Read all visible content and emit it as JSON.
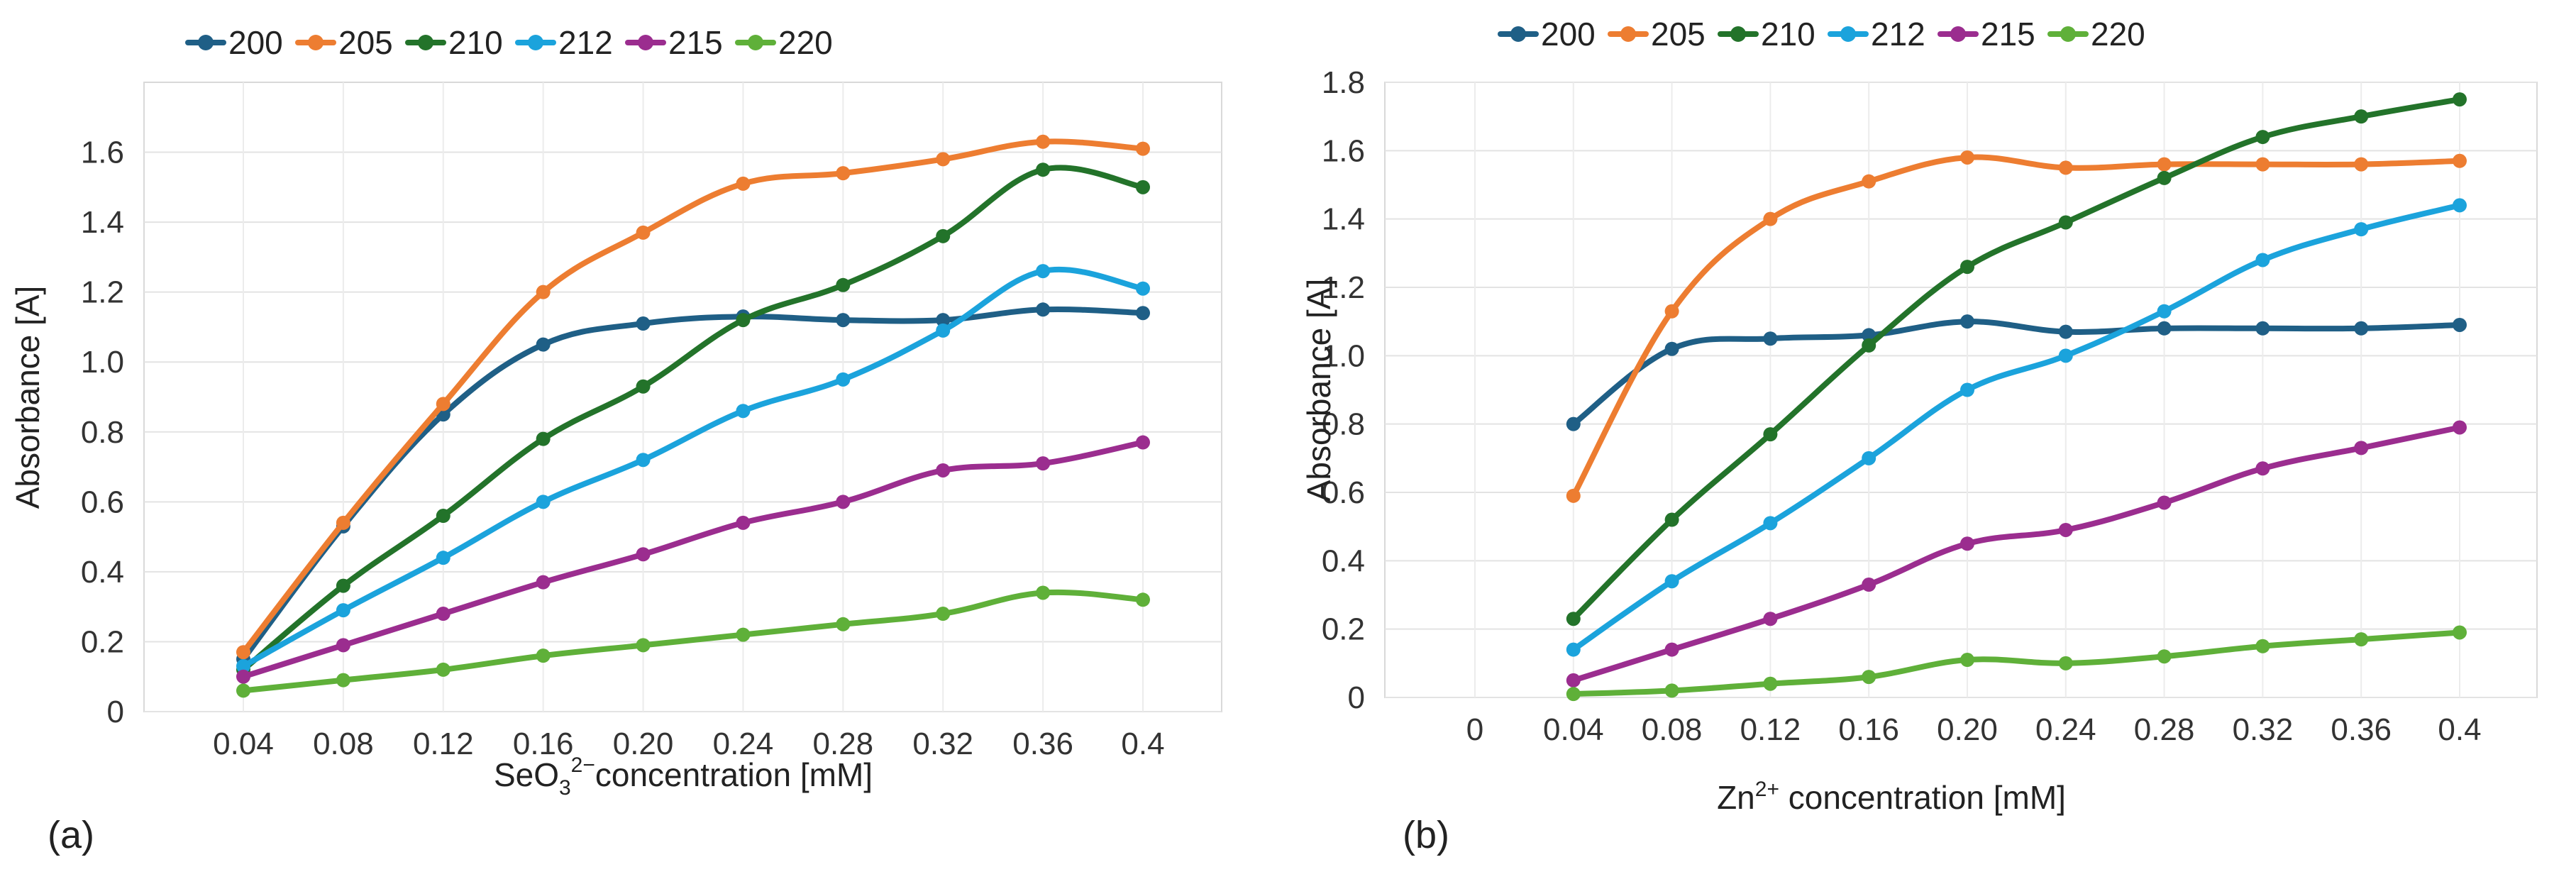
{
  "chart_data": [
    {
      "type": "line",
      "panel_label": "(a)",
      "xlabel": "SeO₃²⁻concentration [mM]",
      "xlabel_parts": {
        "base": "SeO",
        "sub": "3",
        "sup": "2−",
        "rest": "concentration [mM]"
      },
      "ylabel": "Absorbance [A]",
      "ylim": [
        0,
        1.8
      ],
      "yticks": [
        "0",
        "0.2",
        "0.4",
        "0.6",
        "0.8",
        "1.0",
        "1.2",
        "1.4",
        "1.6"
      ],
      "ytick_values": [
        0,
        0.2,
        0.4,
        0.6,
        0.8,
        1.0,
        1.2,
        1.4,
        1.6
      ],
      "categories": [
        "0.04",
        "0.08",
        "0.12",
        "0.16",
        "0.20",
        "0.24",
        "0.28",
        "0.32",
        "0.36",
        "0.4"
      ],
      "grid": true,
      "legend_position": "top",
      "series": [
        {
          "name": "200",
          "color": "#1f5f86",
          "values": [
            0.15,
            0.53,
            0.85,
            1.05,
            1.11,
            1.13,
            1.12,
            1.12,
            1.15,
            1.14
          ]
        },
        {
          "name": "205",
          "color": "#ed7d31",
          "values": [
            0.17,
            0.54,
            0.88,
            1.2,
            1.37,
            1.51,
            1.54,
            1.58,
            1.63,
            1.61
          ]
        },
        {
          "name": "210",
          "color": "#23732a",
          "values": [
            0.12,
            0.36,
            0.56,
            0.78,
            0.93,
            1.12,
            1.22,
            1.36,
            1.55,
            1.5
          ]
        },
        {
          "name": "212",
          "color": "#1ba3dc",
          "values": [
            0.13,
            0.29,
            0.44,
            0.6,
            0.72,
            0.86,
            0.95,
            1.09,
            1.26,
            1.21
          ]
        },
        {
          "name": "215",
          "color": "#9b2d8f",
          "values": [
            0.1,
            0.19,
            0.28,
            0.37,
            0.45,
            0.54,
            0.6,
            0.69,
            0.71,
            0.77
          ]
        },
        {
          "name": "220",
          "color": "#5fb039",
          "values": [
            0.06,
            0.09,
            0.12,
            0.16,
            0.19,
            0.22,
            0.25,
            0.28,
            0.34,
            0.32
          ]
        }
      ]
    },
    {
      "type": "line",
      "panel_label": "(b)",
      "xlabel": "Zn²⁺ concentration [mM]",
      "xlabel_parts": {
        "base": "Zn",
        "sup": "2+",
        "rest": " concentration [mM]"
      },
      "ylabel": "Absorbance [A]",
      "ylim": [
        0,
        1.8
      ],
      "yticks": [
        "0",
        "0.2",
        "0.4",
        "0.6",
        "0.8",
        "1.0",
        "1.2",
        "1.4",
        "1.6",
        "1.8"
      ],
      "ytick_values": [
        0,
        0.2,
        0.4,
        0.6,
        0.8,
        1.0,
        1.2,
        1.4,
        1.6,
        1.8
      ],
      "categories": [
        "0",
        "0.04",
        "0.08",
        "0.12",
        "0.16",
        "0.20",
        "0.24",
        "0.28",
        "0.32",
        "0.36",
        "0.4"
      ],
      "grid": true,
      "legend_position": "top",
      "series": [
        {
          "name": "200",
          "color": "#1f5f86",
          "values": [
            null,
            0.8,
            1.02,
            1.05,
            1.06,
            1.1,
            1.07,
            1.08,
            1.08,
            1.08,
            1.09
          ]
        },
        {
          "name": "205",
          "color": "#ed7d31",
          "values": [
            null,
            0.59,
            1.13,
            1.4,
            1.51,
            1.58,
            1.55,
            1.56,
            1.56,
            1.56,
            1.57
          ]
        },
        {
          "name": "210",
          "color": "#23732a",
          "values": [
            null,
            0.23,
            0.52,
            0.77,
            1.03,
            1.26,
            1.39,
            1.52,
            1.64,
            1.7,
            1.75
          ]
        },
        {
          "name": "212",
          "color": "#1ba3dc",
          "values": [
            null,
            0.14,
            0.34,
            0.51,
            0.7,
            0.9,
            1.0,
            1.13,
            1.28,
            1.37,
            1.44
          ]
        },
        {
          "name": "215",
          "color": "#9b2d8f",
          "values": [
            null,
            0.05,
            0.14,
            0.23,
            0.33,
            0.45,
            0.49,
            0.57,
            0.67,
            0.73,
            0.79
          ]
        },
        {
          "name": "220",
          "color": "#5fb039",
          "values": [
            null,
            0.01,
            0.02,
            0.04,
            0.06,
            0.11,
            0.1,
            0.12,
            0.15,
            0.17,
            0.19
          ]
        }
      ]
    }
  ]
}
